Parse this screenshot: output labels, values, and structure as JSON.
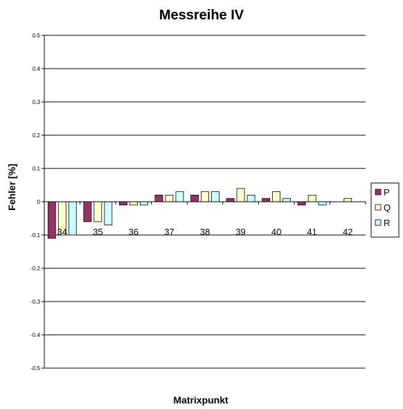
{
  "chart_data": {
    "type": "bar",
    "title": "Messreihe IV",
    "xlabel": "Matrixpunkt",
    "ylabel": "Fehler [%]",
    "categories": [
      "34",
      "35",
      "36",
      "37",
      "38",
      "39",
      "40",
      "41",
      "42"
    ],
    "ylim": [
      -0.5,
      0.5
    ],
    "yticks": [
      "0.5",
      "0.4",
      "0.3",
      "0.2",
      "0.1",
      "0",
      "-0.1",
      "-0.2",
      "-0.3",
      "-0.4",
      "-0.5"
    ],
    "grid": true,
    "legend_position": "right",
    "series": [
      {
        "name": "P",
        "color": "#993366",
        "values": [
          -0.11,
          -0.06,
          -0.01,
          0.02,
          0.02,
          0.01,
          0.01,
          -0.01,
          0
        ]
      },
      {
        "name": "Q",
        "color": "#FFFFCC",
        "values": [
          -0.1,
          -0.06,
          -0.01,
          0.02,
          0.03,
          0.04,
          0.03,
          0.02,
          0.01
        ]
      },
      {
        "name": "R",
        "color": "#CCFFFF",
        "values": [
          -0.1,
          -0.07,
          -0.01,
          0.03,
          0.03,
          0.02,
          0.01,
          -0.01,
          0
        ]
      }
    ]
  }
}
